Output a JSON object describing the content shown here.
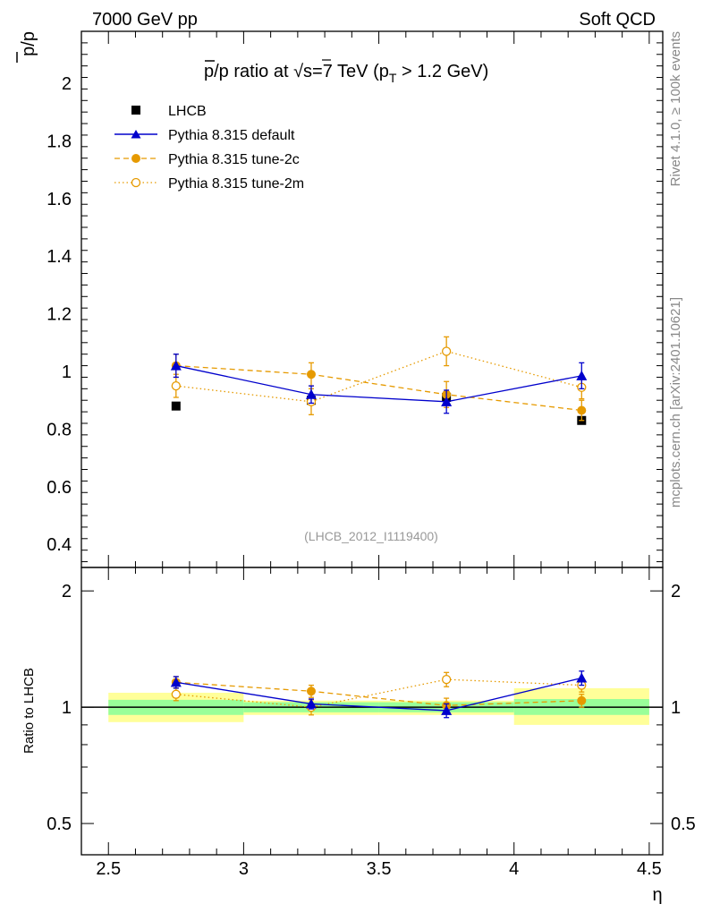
{
  "header": {
    "left": "7000 GeV pp",
    "right": "Soft QCD"
  },
  "chart_data": {
    "type": "line",
    "title_parts": {
      "lead": "p/p ratio at ",
      "sqrt": "√",
      "s_part": "s=7 TeV (p",
      "sub": "T",
      "tail": " > 1.2 GeV)"
    },
    "xlabel": "η",
    "ylabel_main": "p/p",
    "ylabel_ratio": "Ratio to LHCB",
    "analysis_tag": "(LHCB_2012_I1119400)",
    "side_labels": {
      "top": "Rivet 4.1.0, ≥ 100k events",
      "bottom": "mcplots.cern.ch [arXiv:2401.10621]"
    },
    "xlim": [
      2.4,
      4.55
    ],
    "ylim_main": [
      0.32,
      2.18
    ],
    "ylim_ratio": [
      0.415,
      2.3
    ],
    "x_ticks": [
      2.5,
      3,
      3.5,
      4,
      4.5
    ],
    "x_tick_labels": [
      "2.5",
      "3",
      "3.5",
      "4",
      "4.5"
    ],
    "y_ticks_main": [
      0.4,
      0.6,
      0.8,
      1,
      1.2,
      1.4,
      1.6,
      1.8,
      2
    ],
    "y_tick_labels_main": [
      "0.4",
      "0.6",
      "0.8",
      "1",
      "1.2",
      "1.4",
      "1.6",
      "1.8",
      "2"
    ],
    "y_ticks_ratio": [
      0.5,
      1,
      2
    ],
    "y_tick_labels_ratio": [
      "0.5",
      "1",
      "2"
    ],
    "reference": {
      "name": "LHCB",
      "x": [
        2.75,
        3.25,
        3.75,
        4.25
      ],
      "y": [
        0.88,
        0.9,
        0.91,
        0.83
      ],
      "bin_lo": [
        2.5,
        3.0,
        3.5,
        4.0
      ],
      "bin_hi": [
        3.0,
        3.5,
        4.0,
        4.5
      ],
      "ratio_band_stat": [
        [
          0.955,
          1.045
        ],
        [
          0.97,
          1.03
        ],
        [
          0.97,
          1.03
        ],
        [
          0.955,
          1.05
        ]
      ],
      "ratio_band_total": [
        [
          0.915,
          1.09
        ],
        [
          0.955,
          1.04
        ],
        [
          0.955,
          1.04
        ],
        [
          0.9,
          1.12
        ]
      ],
      "color": "#000000"
    },
    "series": [
      {
        "name": "Pythia 8.315 default",
        "color": "#0000cc",
        "style": "solid",
        "marker": "triangle",
        "x": [
          2.75,
          3.25,
          3.75,
          4.25
        ],
        "y": [
          1.02,
          0.92,
          0.895,
          0.985
        ],
        "err": [
          0.04,
          0.03,
          0.04,
          0.045
        ],
        "ratio": [
          1.16,
          1.02,
          0.98,
          1.19
        ],
        "ratio_err": [
          0.04,
          0.03,
          0.04,
          0.05
        ]
      },
      {
        "name": "Pythia 8.315 tune-2c",
        "color": "#e69a00",
        "style": "dashed",
        "marker": "filled-circle",
        "x": [
          2.75,
          3.25,
          3.75,
          4.25
        ],
        "y": [
          1.02,
          0.99,
          0.92,
          0.865
        ],
        "err": [
          0.04,
          0.04,
          0.045,
          0.035
        ],
        "ratio": [
          1.16,
          1.1,
          1.01,
          1.04
        ],
        "ratio_err": [
          0.04,
          0.04,
          0.045,
          0.04
        ]
      },
      {
        "name": "Pythia 8.315 tune-2m",
        "color": "#e69a00",
        "style": "dotted",
        "marker": "open-circle",
        "x": [
          2.75,
          3.25,
          3.75,
          4.25
        ],
        "y": [
          0.95,
          0.895,
          1.07,
          0.945
        ],
        "err": [
          0.04,
          0.045,
          0.05,
          0.04
        ],
        "ratio": [
          1.08,
          1.0,
          1.18,
          1.14
        ],
        "ratio_err": [
          0.04,
          0.045,
          0.05,
          0.045
        ]
      }
    ]
  }
}
